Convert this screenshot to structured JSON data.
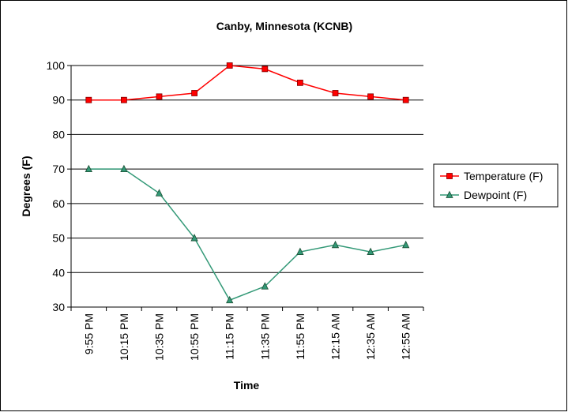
{
  "chart_data": {
    "type": "line",
    "title": "Canby, Minnesota (KCNB)",
    "x_label": "Time",
    "y_label": "Degrees (F)",
    "categories": [
      "9:55 PM",
      "10:15 PM",
      "10:35 PM",
      "10:55 PM",
      "11:15 PM",
      "11:35 PM",
      "11:55 PM",
      "12:15 AM",
      "12:35 AM",
      "12:55 AM"
    ],
    "series": [
      {
        "name": "Temperature (F)",
        "color": "#ff0000",
        "marker": "square",
        "values": [
          90,
          90,
          91,
          92,
          100,
          99,
          95,
          92,
          91,
          90
        ]
      },
      {
        "name": "Dewpoint (F)",
        "color": "#339977",
        "marker": "triangle",
        "values": [
          70,
          70,
          63,
          50,
          32,
          36,
          46,
          48,
          46,
          48
        ]
      }
    ],
    "ylim": [
      30,
      100
    ],
    "yticks": [
      30,
      40,
      50,
      60,
      70,
      80,
      90,
      100
    ],
    "grid": true,
    "legend": "right"
  }
}
